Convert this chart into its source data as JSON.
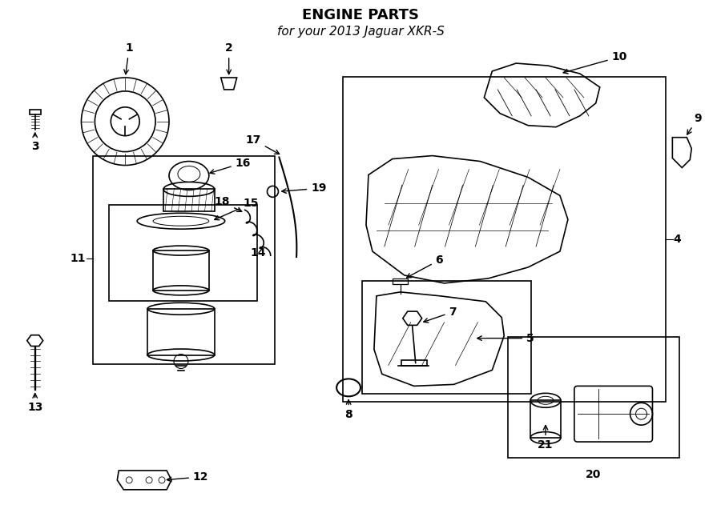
{
  "title": "ENGINE PARTS",
  "subtitle": "for your 2013 Jaguar XKR-S",
  "bg_color": "#ffffff",
  "line_color": "#000000",
  "title_fontsize": 13,
  "subtitle_fontsize": 11,
  "fig_width": 9.0,
  "fig_height": 6.61
}
